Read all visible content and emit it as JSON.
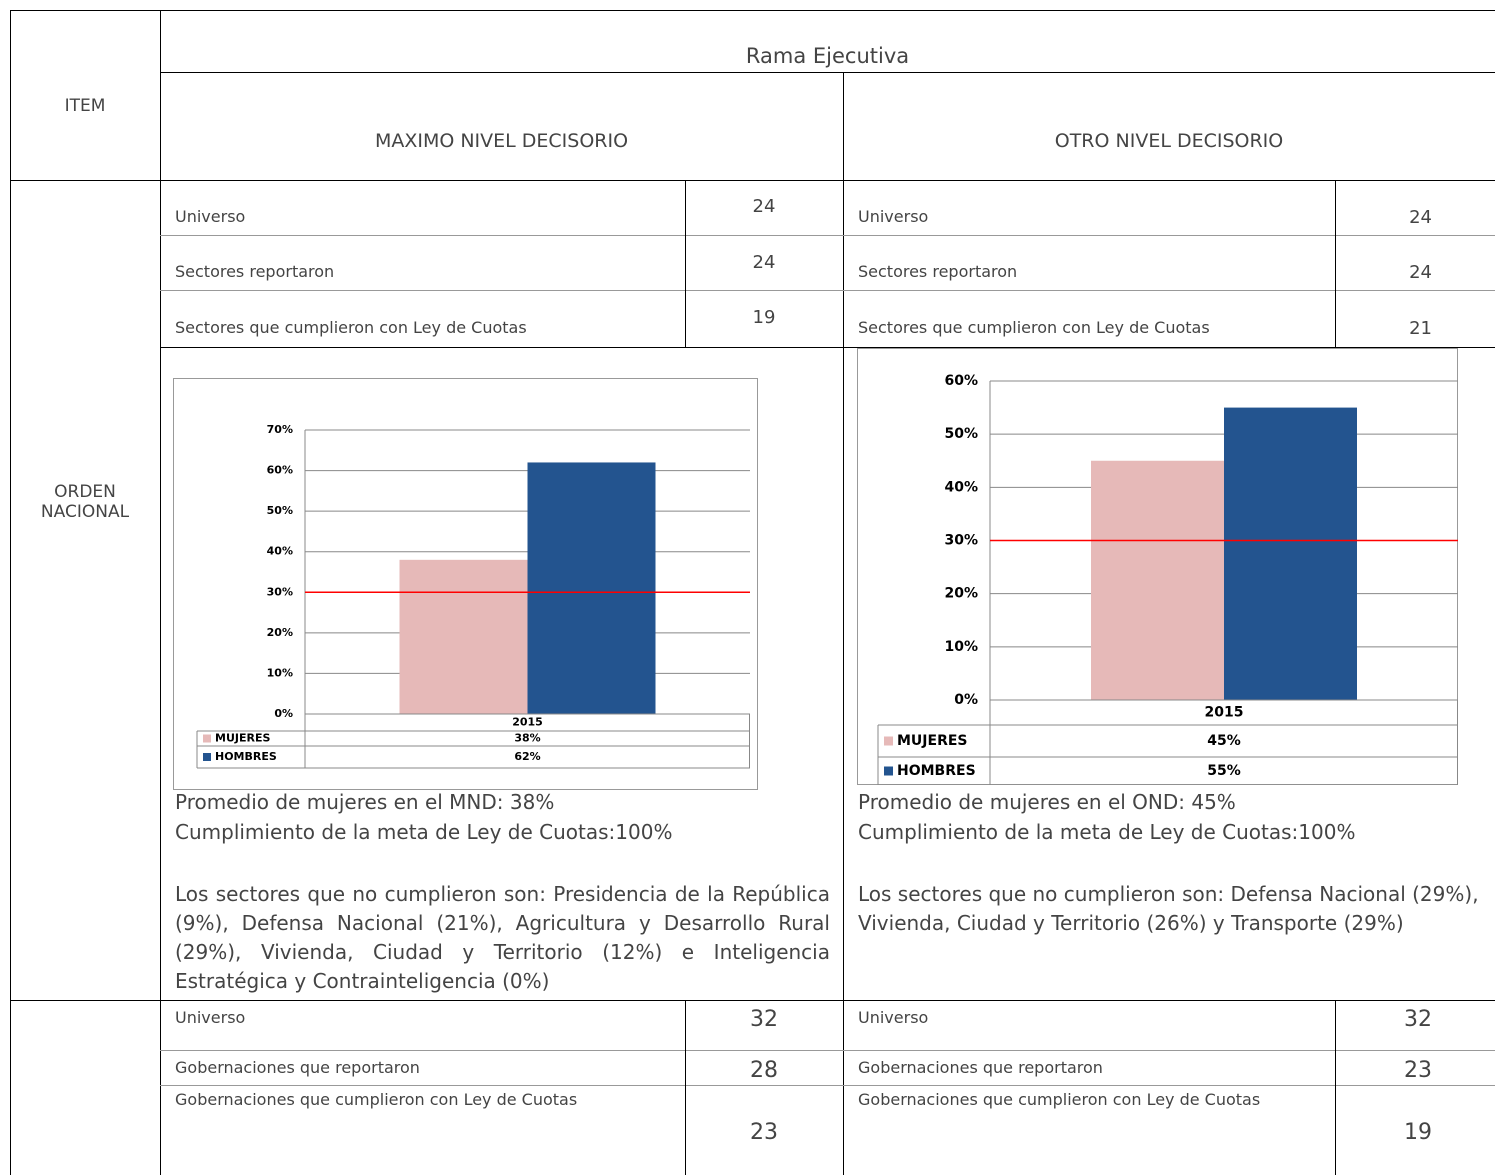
{
  "header": {
    "item": "ITEM",
    "branch": "Rama Ejecutiva",
    "mnd": "MAXIMO NIVEL DECISORIO",
    "ond": "OTRO NIVEL DECISORIO"
  },
  "sections": [
    {
      "label": "ORDEN NACIONAL",
      "mnd": {
        "rows": [
          [
            "Universo",
            24
          ],
          [
            "Sectores reportaron",
            24
          ],
          [
            "Sectores que cumplieron con Ley de Cuotas",
            19
          ]
        ],
        "chart": {
          "type": "bar",
          "categories": [
            "2015"
          ],
          "series": [
            {
              "name": "MUJERES",
              "color": "#e6b9b8",
              "values": [
                38
              ],
              "value_labels": [
                "38%"
              ]
            },
            {
              "name": "HOMBRES",
              "color": "#23548f",
              "values": [
                62
              ],
              "value_labels": [
                "62%"
              ]
            }
          ],
          "ylim": [
            0,
            70
          ],
          "yticks": [
            {
              "value": 0,
              "label": "0%"
            },
            {
              "value": 10,
              "label": "10%"
            },
            {
              "value": 20,
              "label": "20%"
            },
            {
              "value": 30,
              "label": "30%"
            },
            {
              "value": 40,
              "label": "40%"
            },
            {
              "value": 50,
              "label": "50%"
            },
            {
              "value": 60,
              "label": "60%"
            },
            {
              "value": 70,
              "label": "70%"
            }
          ],
          "grid": true,
          "reference_line": {
            "value": 30,
            "color": "#ff0000"
          }
        },
        "notes": [
          "Promedio de  mujeres en el MND: 38%",
          "Cumplimiento de la meta de Ley de Cuotas:100%"
        ],
        "paragraph": "Los sectores que no cumplieron son: Presidencia de la República (9%), Defensa Nacional (21%), Agricultura y Desarrollo Rural (29%), Vivienda, Ciudad y Territorio (12%) e Inteligencia Estratégica y Contrainteligencia (0%)"
      },
      "ond": {
        "rows": [
          [
            "Universo",
            24
          ],
          [
            "Sectores reportaron",
            24
          ],
          [
            "Sectores que cumplieron con Ley de Cuotas",
            21
          ]
        ],
        "chart": {
          "type": "bar",
          "categories": [
            "2015"
          ],
          "series": [
            {
              "name": "MUJERES",
              "color": "#e6b9b8",
              "values": [
                45
              ],
              "value_labels": [
                "45%"
              ]
            },
            {
              "name": "HOMBRES",
              "color": "#23548f",
              "values": [
                55
              ],
              "value_labels": [
                "55%"
              ]
            }
          ],
          "ylim": [
            0,
            60
          ],
          "yticks": [
            {
              "value": 0,
              "label": "0%"
            },
            {
              "value": 10,
              "label": "10%"
            },
            {
              "value": 20,
              "label": "20%"
            },
            {
              "value": 30,
              "label": "30%"
            },
            {
              "value": 40,
              "label": "40%"
            },
            {
              "value": 50,
              "label": "50%"
            },
            {
              "value": 60,
              "label": "60%"
            }
          ],
          "grid": true,
          "reference_line": {
            "value": 30,
            "color": "#ff0000"
          }
        },
        "notes": [
          "Promedio  de mujeres en el OND: 45%",
          "Cumplimiento de la meta de Ley de Cuotas:100%"
        ],
        "paragraph": "Los sectores que no cumplieron son: Defensa Nacional (29%), Vivienda, Ciudad y Territorio (26%) y Transporte (29%)"
      }
    },
    {
      "mnd": {
        "rows": [
          [
            "Universo",
            32
          ],
          [
            "Gobernaciones que  reportaron",
            28
          ],
          [
            "Gobernaciones que cumplieron con Ley de Cuotas",
            23
          ]
        ]
      },
      "ond": {
        "rows": [
          [
            "Universo",
            32
          ],
          [
            "Gobernaciones que reportaron",
            23
          ],
          [
            "Gobernaciones que cumplieron con Ley de Cuotas",
            19
          ]
        ]
      }
    }
  ]
}
